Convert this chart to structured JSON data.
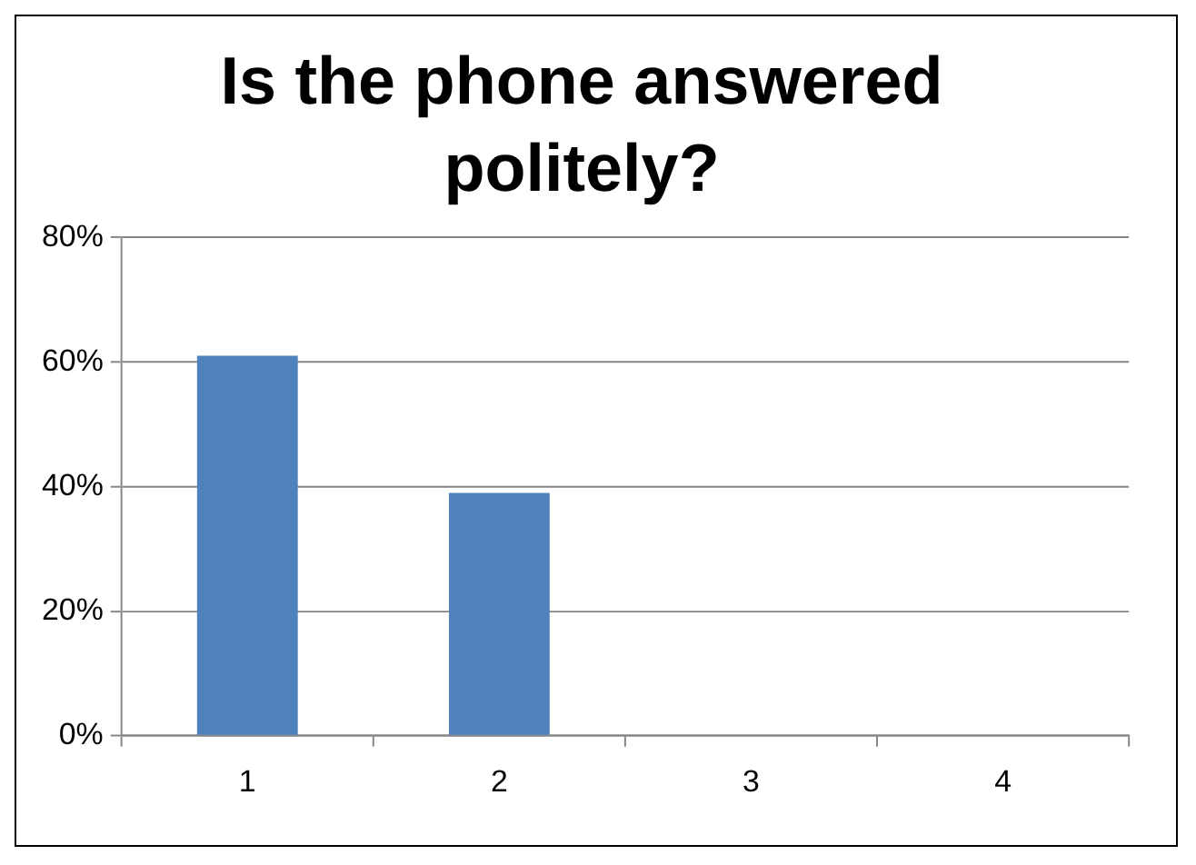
{
  "chart_data": {
    "type": "bar",
    "title": "Is the phone answered politely?",
    "categories": [
      "1",
      "2",
      "3",
      "4"
    ],
    "values": [
      61,
      39,
      0,
      0
    ],
    "color": "#4f81bd",
    "ylim": [
      0,
      80
    ],
    "yticks": [
      {
        "value": 0,
        "label": "0%"
      },
      {
        "value": 20,
        "label": "20%"
      },
      {
        "value": 40,
        "label": "40%"
      },
      {
        "value": 60,
        "label": "60%"
      },
      {
        "value": 80,
        "label": "80%"
      }
    ],
    "grid": "y",
    "legend": false
  }
}
